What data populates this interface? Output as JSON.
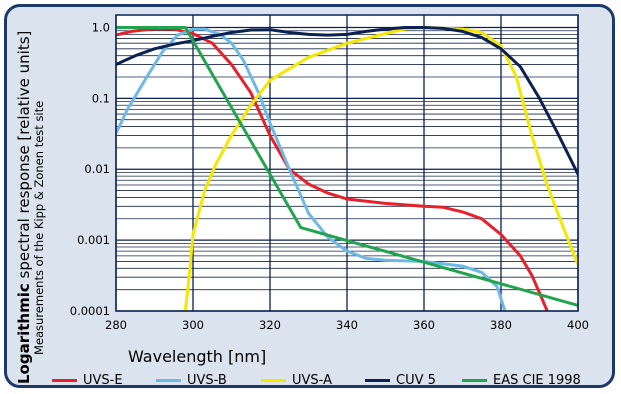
{
  "chart_data": {
    "type": "line",
    "title": "",
    "xlabel": "Wavelength [nm]",
    "ylabel_bold": "Logarithmic",
    "ylabel_rest": " spectral response [relative units]",
    "ylabel_sub": "Measurements of the Kipp & Zonen test site",
    "x_scale": "linear",
    "y_scale": "log",
    "xlim": [
      280,
      400
    ],
    "ylim": [
      0.0001,
      1.5
    ],
    "grid": true,
    "legend_position": "bottom",
    "x_ticks": [
      280,
      300,
      320,
      340,
      360,
      380,
      400
    ],
    "x_tick_labels": [
      "280",
      "300",
      "320",
      "340",
      "360",
      "380",
      "400"
    ],
    "y_ticks": [
      0.0001,
      0.001,
      0.01,
      0.1,
      1.0
    ],
    "y_tick_labels": [
      "0.0001",
      "0.001",
      "0.01",
      "0.1",
      "1.0"
    ],
    "series": [
      {
        "name": "UVS-E",
        "color": "#e8202a",
        "points": [
          [
            280,
            0.78
          ],
          [
            284,
            0.88
          ],
          [
            290,
            0.96
          ],
          [
            295,
            0.95
          ],
          [
            300,
            0.82
          ],
          [
            305,
            0.6
          ],
          [
            310,
            0.3
          ],
          [
            315,
            0.12
          ],
          [
            320,
            0.03
          ],
          [
            325,
            0.01
          ],
          [
            330,
            0.0062
          ],
          [
            335,
            0.0046
          ],
          [
            340,
            0.0038
          ],
          [
            350,
            0.0033
          ],
          [
            360,
            0.003
          ],
          [
            365,
            0.0029
          ],
          [
            370,
            0.0025
          ],
          [
            375,
            0.002
          ],
          [
            380,
            0.0012
          ],
          [
            385,
            0.0006
          ],
          [
            388,
            0.00032
          ],
          [
            390,
            0.00018
          ],
          [
            392,
            0.0001
          ]
        ]
      },
      {
        "name": "UVS-B",
        "color": "#6cb9e8",
        "points": [
          [
            280,
            0.032
          ],
          [
            283,
            0.07
          ],
          [
            288,
            0.2
          ],
          [
            292,
            0.45
          ],
          [
            296,
            0.78
          ],
          [
            300,
            0.95
          ],
          [
            303,
            0.95
          ],
          [
            307,
            0.8
          ],
          [
            310,
            0.6
          ],
          [
            313,
            0.35
          ],
          [
            317,
            0.12
          ],
          [
            320,
            0.045
          ],
          [
            325,
            0.01
          ],
          [
            330,
            0.0024
          ],
          [
            335,
            0.0011
          ],
          [
            340,
            0.0007
          ],
          [
            345,
            0.00055
          ],
          [
            350,
            0.00052
          ],
          [
            360,
            0.0005
          ],
          [
            370,
            0.00043
          ],
          [
            375,
            0.00035
          ],
          [
            379,
            0.00022
          ],
          [
            381,
            0.0001
          ]
        ]
      },
      {
        "name": "UVS-A",
        "color": "#f5e800",
        "points": [
          [
            298,
            0.0001
          ],
          [
            299,
            0.0003
          ],
          [
            300,
            0.0012
          ],
          [
            303,
            0.005
          ],
          [
            306,
            0.012
          ],
          [
            310,
            0.03
          ],
          [
            315,
            0.08
          ],
          [
            320,
            0.18
          ],
          [
            330,
            0.38
          ],
          [
            340,
            0.6
          ],
          [
            350,
            0.82
          ],
          [
            355,
            0.95
          ],
          [
            360,
            1.0
          ],
          [
            370,
            0.95
          ],
          [
            375,
            0.85
          ],
          [
            380,
            0.55
          ],
          [
            384,
            0.2
          ],
          [
            388,
            0.03
          ],
          [
            392,
            0.006
          ],
          [
            396,
            0.0016
          ],
          [
            400,
            0.00045
          ]
        ]
      },
      {
        "name": "CUV 5",
        "color": "#0b2152",
        "points": [
          [
            280,
            0.3
          ],
          [
            285,
            0.4
          ],
          [
            290,
            0.5
          ],
          [
            295,
            0.58
          ],
          [
            300,
            0.65
          ],
          [
            305,
            0.75
          ],
          [
            310,
            0.85
          ],
          [
            315,
            0.92
          ],
          [
            320,
            0.93
          ],
          [
            325,
            0.85
          ],
          [
            330,
            0.8
          ],
          [
            335,
            0.78
          ],
          [
            340,
            0.8
          ],
          [
            345,
            0.88
          ],
          [
            350,
            0.95
          ],
          [
            355,
            1.0
          ],
          [
            360,
            1.0
          ],
          [
            365,
            0.97
          ],
          [
            370,
            0.88
          ],
          [
            375,
            0.72
          ],
          [
            380,
            0.5
          ],
          [
            385,
            0.28
          ],
          [
            390,
            0.1
          ],
          [
            395,
            0.03
          ],
          [
            400,
            0.0085
          ]
        ]
      },
      {
        "name": "EAS CIE 1998",
        "color": "#22a44e",
        "points": [
          [
            280,
            1.0
          ],
          [
            298,
            1.0
          ],
          [
            328,
            0.0015
          ],
          [
            400,
            0.00012
          ]
        ]
      }
    ]
  }
}
